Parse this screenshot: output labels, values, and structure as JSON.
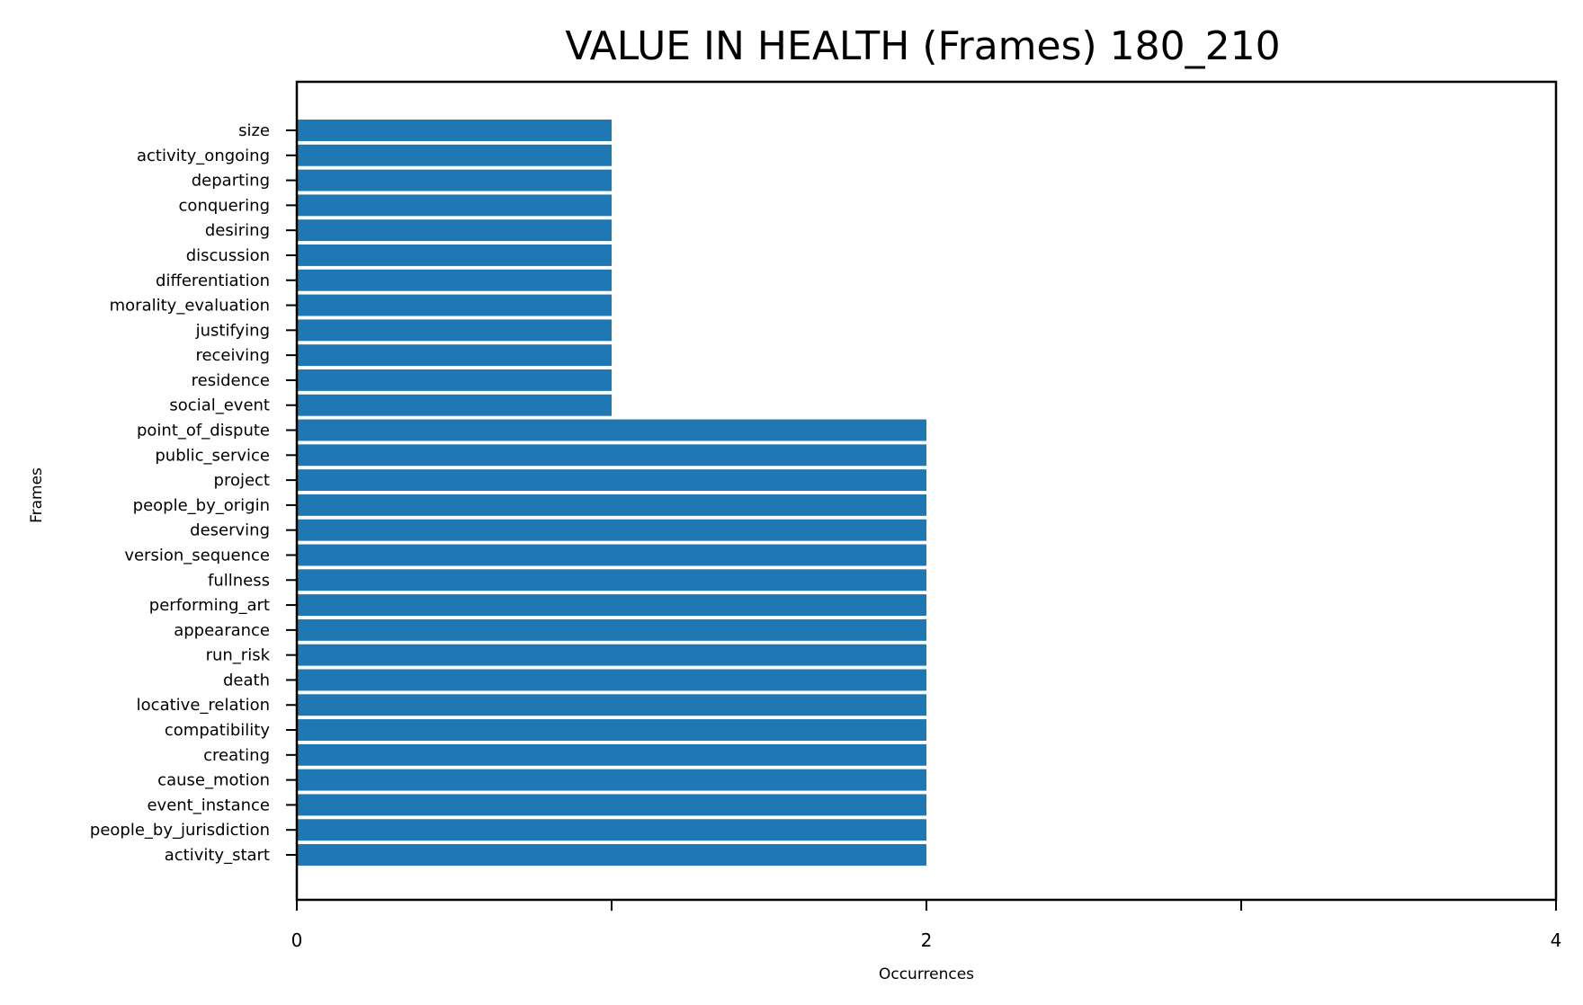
{
  "chart_data": {
    "type": "bar",
    "orientation": "horizontal",
    "title": "VALUE IN HEALTH (Frames) 180_210",
    "xlabel": "Occurrences",
    "ylabel": "Frames",
    "xlim": [
      0,
      4
    ],
    "x_ticks": [
      0,
      1,
      2,
      3,
      4
    ],
    "x_tick_labels": [
      "0",
      "",
      "2",
      "",
      "4"
    ],
    "grid": false,
    "bar_color": "#1f77b4",
    "categories": [
      "size",
      "activity_ongoing",
      "departing",
      "conquering",
      "desiring",
      "discussion",
      "differentiation",
      "morality_evaluation",
      "justifying",
      "receiving",
      "residence",
      "social_event",
      "point_of_dispute",
      "public_service",
      "project",
      "people_by_origin",
      "deserving",
      "version_sequence",
      "fullness",
      "performing_art",
      "appearance",
      "run_risk",
      "death",
      "locative_relation",
      "compatibility",
      "creating",
      "cause_motion",
      "event_instance",
      "people_by_jurisdiction",
      "activity_start"
    ],
    "values": [
      1,
      1,
      1,
      1,
      1,
      1,
      1,
      1,
      1,
      1,
      1,
      1,
      2,
      2,
      2,
      2,
      2,
      2,
      2,
      2,
      2,
      2,
      2,
      2,
      2,
      2,
      2,
      2,
      2,
      2
    ]
  }
}
